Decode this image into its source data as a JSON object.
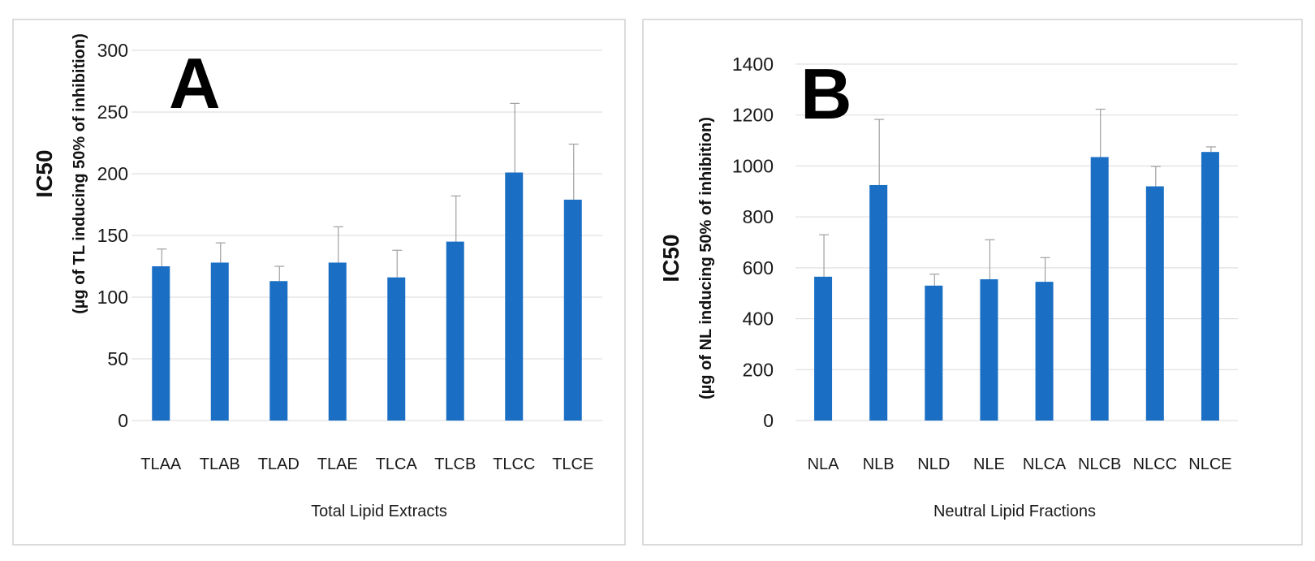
{
  "colors": {
    "bar": "#1a6fc4",
    "grid": "#d9d9d9",
    "frame": "#d0d0d0",
    "errorbar": "#a0a0a0"
  },
  "chart_data": [
    {
      "type": "bar",
      "panel_label": "A",
      "categories": [
        "TLAA",
        "TLAB",
        "TLAD",
        "TLAE",
        "TLCA",
        "TLCB",
        "TLCC",
        "TLCE"
      ],
      "values": [
        125,
        128,
        113,
        128,
        116,
        145,
        201,
        179
      ],
      "errors": [
        14,
        16,
        12,
        29,
        22,
        37,
        56,
        45
      ],
      "title": "",
      "xlabel": "Total Lipid Extracts",
      "ylabel": "IC50",
      "ylabel_sub": "(µg of TL inducing 50% of inhibition)",
      "ylim": [
        0,
        300
      ],
      "yticks": [
        "0",
        "50",
        "100",
        "150",
        "200",
        "250",
        "300"
      ],
      "grid": true
    },
    {
      "type": "bar",
      "panel_label": "B",
      "categories": [
        "NLA",
        "NLB",
        "NLD",
        "NLE",
        "NLCA",
        "NLCB",
        "NLCC",
        "NLCE"
      ],
      "values": [
        565,
        925,
        530,
        555,
        545,
        1035,
        920,
        1055
      ],
      "errors": [
        165,
        258,
        45,
        155,
        95,
        188,
        78,
        20
      ],
      "title": "",
      "xlabel": "Neutral Lipid Fractions",
      "ylabel": "IC50",
      "ylabel_sub": "(µg of NL inducing 50% of inhibition)",
      "ylim": [
        0,
        1400
      ],
      "yticks": [
        "0",
        "200",
        "400",
        "600",
        "800",
        "1000",
        "1200",
        "1400"
      ],
      "grid": true
    }
  ]
}
